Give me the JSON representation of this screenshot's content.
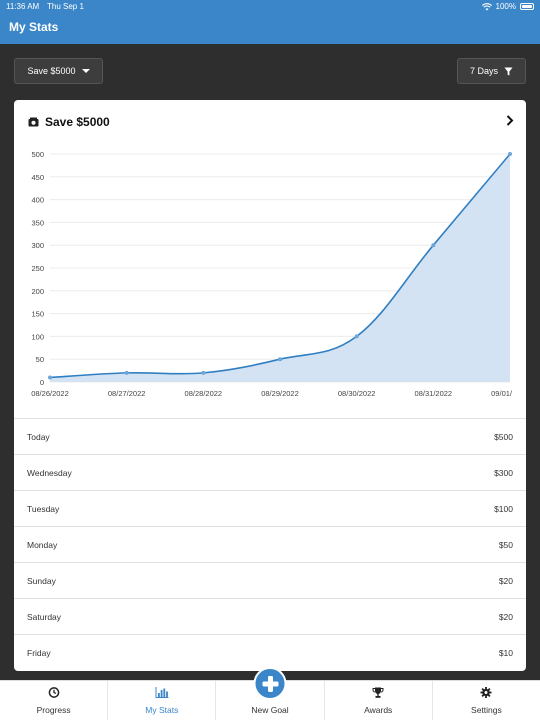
{
  "status": {
    "time": "11:36 AM",
    "date": "Thu Sep 1",
    "battery": "100%"
  },
  "navbar": {
    "title": "My Stats"
  },
  "controls": {
    "goal_label": "Save $5000",
    "range_label": "7 Days"
  },
  "card": {
    "title": "Save $5000"
  },
  "chart_data": {
    "type": "area",
    "x": [
      "08/26/2022",
      "08/27/2022",
      "08/28/2022",
      "08/29/2022",
      "08/30/2022",
      "08/31/2022",
      "09/01/"
    ],
    "y": [
      10,
      20,
      20,
      50,
      100,
      300,
      500
    ],
    "ylim": [
      0,
      500
    ],
    "yticks": [
      "500",
      "450",
      "400",
      "350",
      "300",
      "250",
      "200",
      "150",
      "100",
      "50",
      "0"
    ],
    "line_color": "#2f7fc2",
    "fill_color": "#d3e3f3",
    "grid": true
  },
  "rows": [
    {
      "day": "Today",
      "amount": "$500"
    },
    {
      "day": "Wednesday",
      "amount": "$300"
    },
    {
      "day": "Tuesday",
      "amount": "$100"
    },
    {
      "day": "Monday",
      "amount": "$50"
    },
    {
      "day": "Sunday",
      "amount": "$20"
    },
    {
      "day": "Saturday",
      "amount": "$20"
    },
    {
      "day": "Friday",
      "amount": "$10"
    }
  ],
  "tabs": [
    {
      "label": "Progress",
      "icon": "clock-icon"
    },
    {
      "label": "My Stats",
      "icon": "bar-chart-icon",
      "active": true
    },
    {
      "label": "New Goal",
      "icon": "plus-icon"
    },
    {
      "label": "Awards",
      "icon": "trophy-icon"
    },
    {
      "label": "Settings",
      "icon": "gear-icon"
    }
  ],
  "colors": {
    "accent": "#3a86c8",
    "background": "#2e2e2e"
  }
}
